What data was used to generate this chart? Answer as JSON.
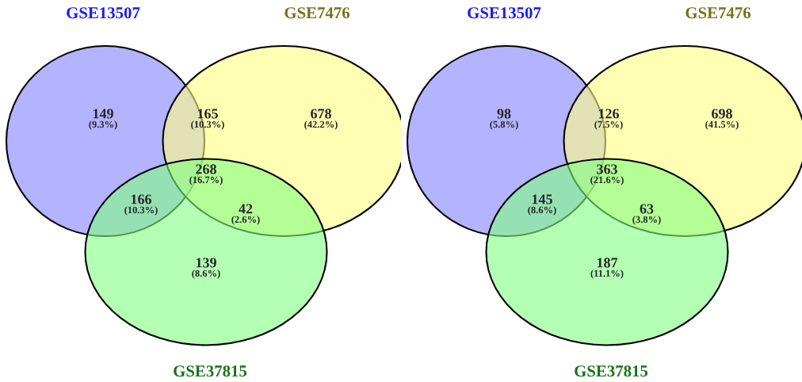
{
  "chart_data": [
    {
      "type": "other",
      "categories": [
        null,
        null,
        null,
        null,
        null,
        null,
        null
      ],
      "values": [
        149,
        165,
        678,
        268,
        166,
        42,
        139
      ],
      "data_labels": true,
      "colors": [
        "#8080ff",
        "#bcb97f",
        "#ffff80",
        "#5fe05f",
        "#40c080",
        "#80ff40",
        "#80ff80"
      ],
      "annotations": [
        "GSE13507",
        "GSE7476",
        "GSE37815",
        "(9.3%)",
        "(10.3%)",
        "(42.2%)",
        "(16.7%)",
        "(10.3%)",
        "(2.6%)",
        "(8.6%)"
      ]
    },
    {
      "type": "other",
      "categories": [
        null,
        null,
        null,
        null,
        null,
        null,
        null
      ],
      "values": [
        98,
        126,
        698,
        363,
        145,
        63,
        187
      ],
      "data_labels": true,
      "colors": [
        "#8080ff",
        "#bcb97f",
        "#ffff80",
        "#5fe05f",
        "#40c080",
        "#80ff40",
        "#80ff80"
      ],
      "annotations": [
        "GSE13507",
        "GSE7476",
        "GSE37815",
        "(5.8%)",
        "(7.5%)",
        "(41.5%)",
        "(21.6%)",
        "(8.6%)",
        "(3.8%)",
        "(11.1%)"
      ]
    }
  ]
}
